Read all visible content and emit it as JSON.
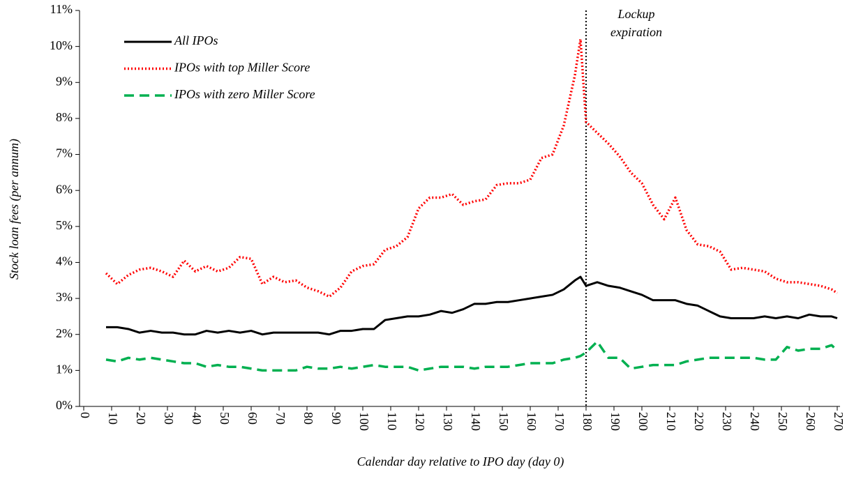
{
  "chart_data": {
    "type": "line",
    "xlabel": "Calendar day relative to IPO day (day 0)",
    "ylabel": "Stock loan fees (per annum)",
    "annotation": [
      "Lockup",
      "expiration"
    ],
    "vline": 180,
    "x": [
      8,
      12,
      16,
      20,
      24,
      28,
      32,
      36,
      40,
      44,
      48,
      52,
      56,
      60,
      64,
      68,
      72,
      76,
      80,
      84,
      88,
      92,
      96,
      100,
      104,
      108,
      112,
      116,
      120,
      124,
      128,
      132,
      136,
      140,
      144,
      148,
      152,
      156,
      160,
      164,
      168,
      172,
      176,
      178,
      180,
      184,
      188,
      192,
      196,
      200,
      204,
      208,
      212,
      216,
      220,
      224,
      228,
      232,
      236,
      240,
      244,
      248,
      252,
      256,
      260,
      264,
      268,
      270
    ],
    "series": [
      {
        "name": "All IPOs",
        "color": "#000000",
        "dash": "solid",
        "values": [
          2.2,
          2.2,
          2.15,
          2.05,
          2.1,
          2.05,
          2.05,
          2.0,
          2.0,
          2.1,
          2.05,
          2.1,
          2.05,
          2.1,
          2.0,
          2.05,
          2.05,
          2.05,
          2.05,
          2.05,
          2.0,
          2.1,
          2.1,
          2.15,
          2.15,
          2.4,
          2.45,
          2.5,
          2.5,
          2.55,
          2.65,
          2.6,
          2.7,
          2.85,
          2.85,
          2.9,
          2.9,
          2.95,
          3.0,
          3.05,
          3.1,
          3.25,
          3.5,
          3.6,
          3.35,
          3.45,
          3.35,
          3.3,
          3.2,
          3.1,
          2.95,
          2.95,
          2.95,
          2.85,
          2.8,
          2.65,
          2.5,
          2.45,
          2.45,
          2.45,
          2.5,
          2.45,
          2.5,
          2.45,
          2.55,
          2.5,
          2.5,
          2.45
        ]
      },
      {
        "name": "IPOs with top Miller Score",
        "color": "#ff0000",
        "dash": "dotted",
        "values": [
          3.7,
          3.4,
          3.65,
          3.8,
          3.85,
          3.75,
          3.6,
          4.05,
          3.75,
          3.9,
          3.75,
          3.85,
          4.15,
          4.1,
          3.4,
          3.6,
          3.45,
          3.5,
          3.3,
          3.2,
          3.05,
          3.3,
          3.75,
          3.9,
          3.95,
          4.35,
          4.45,
          4.7,
          5.5,
          5.8,
          5.8,
          5.9,
          5.6,
          5.7,
          5.75,
          6.15,
          6.2,
          6.2,
          6.3,
          6.9,
          7.0,
          7.8,
          9.2,
          10.2,
          7.9,
          7.6,
          7.3,
          6.95,
          6.5,
          6.2,
          5.6,
          5.2,
          5.8,
          4.9,
          4.5,
          4.45,
          4.3,
          3.8,
          3.85,
          3.8,
          3.75,
          3.55,
          3.45,
          3.45,
          3.4,
          3.35,
          3.25,
          3.15
        ]
      },
      {
        "name": "IPOs with zero Miller Score",
        "color": "#00b050",
        "dash": "dashed",
        "values": [
          1.3,
          1.25,
          1.35,
          1.3,
          1.35,
          1.3,
          1.25,
          1.2,
          1.2,
          1.1,
          1.15,
          1.1,
          1.1,
          1.05,
          1.0,
          1.0,
          1.0,
          1.0,
          1.1,
          1.05,
          1.05,
          1.1,
          1.05,
          1.1,
          1.15,
          1.1,
          1.1,
          1.1,
          1.0,
          1.05,
          1.1,
          1.1,
          1.1,
          1.05,
          1.1,
          1.1,
          1.1,
          1.15,
          1.2,
          1.2,
          1.2,
          1.3,
          1.35,
          1.4,
          1.5,
          1.8,
          1.35,
          1.35,
          1.05,
          1.1,
          1.15,
          1.15,
          1.15,
          1.25,
          1.3,
          1.35,
          1.35,
          1.35,
          1.35,
          1.35,
          1.3,
          1.3,
          1.65,
          1.55,
          1.6,
          1.6,
          1.7,
          1.55
        ]
      }
    ],
    "xlim": [
      0,
      270
    ],
    "xticks": [
      0,
      10,
      20,
      30,
      40,
      50,
      60,
      70,
      80,
      90,
      100,
      110,
      120,
      130,
      140,
      150,
      160,
      170,
      180,
      190,
      200,
      210,
      220,
      230,
      240,
      250,
      260,
      270
    ],
    "ylim": [
      0,
      11
    ],
    "yticks": [
      {
        "value": 0,
        "label": "0%"
      },
      {
        "value": 1,
        "label": "1%"
      },
      {
        "value": 2,
        "label": "2%"
      },
      {
        "value": 3,
        "label": "3%"
      },
      {
        "value": 4,
        "label": "4%"
      },
      {
        "value": 5,
        "label": "5%"
      },
      {
        "value": 6,
        "label": "6%"
      },
      {
        "value": 7,
        "label": "7%"
      },
      {
        "value": 8,
        "label": "8%"
      },
      {
        "value": 9,
        "label": "9%"
      },
      {
        "value": 10,
        "label": "10%"
      },
      {
        "value": 11,
        "label": "11%"
      }
    ],
    "grid": false
  }
}
